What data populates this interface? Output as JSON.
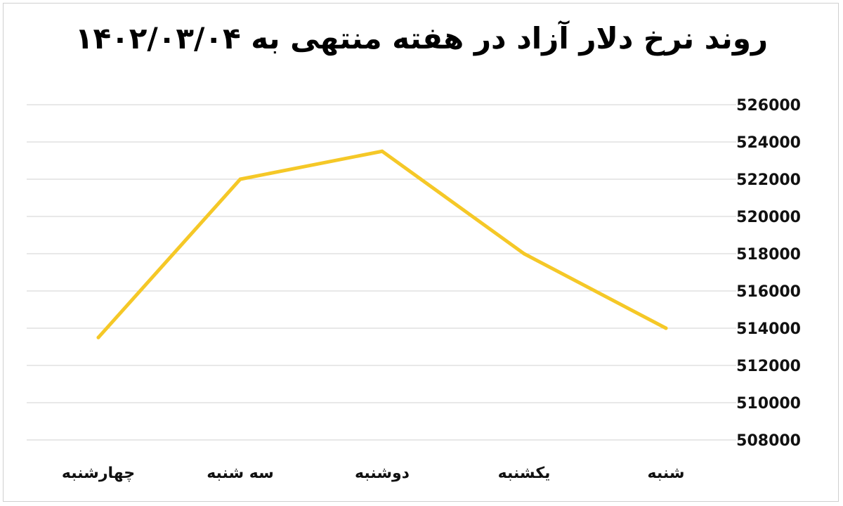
{
  "chart_data": {
    "type": "line",
    "title": "روند نرخ دلار آزاد در هفته منتهی به ۱۴۰۲/۰۳/۰۴",
    "xlabel": "",
    "ylabel": "",
    "categories": [
      "چهارشنبه",
      "سه شنبه",
      "دوشنبه",
      "یکشنبه",
      "شنبه"
    ],
    "series": [
      {
        "values": [
          513500,
          522000,
          523500,
          518000,
          514000
        ],
        "color": "#f5c827"
      }
    ],
    "ylim": [
      508000,
      526000
    ],
    "yticks": [
      "526000",
      "524000",
      "522000",
      "520000",
      "518000",
      "516000",
      "514000",
      "512000",
      "510000",
      "508000"
    ],
    "y_axis_side": "right",
    "grid": true,
    "legend": "none"
  }
}
